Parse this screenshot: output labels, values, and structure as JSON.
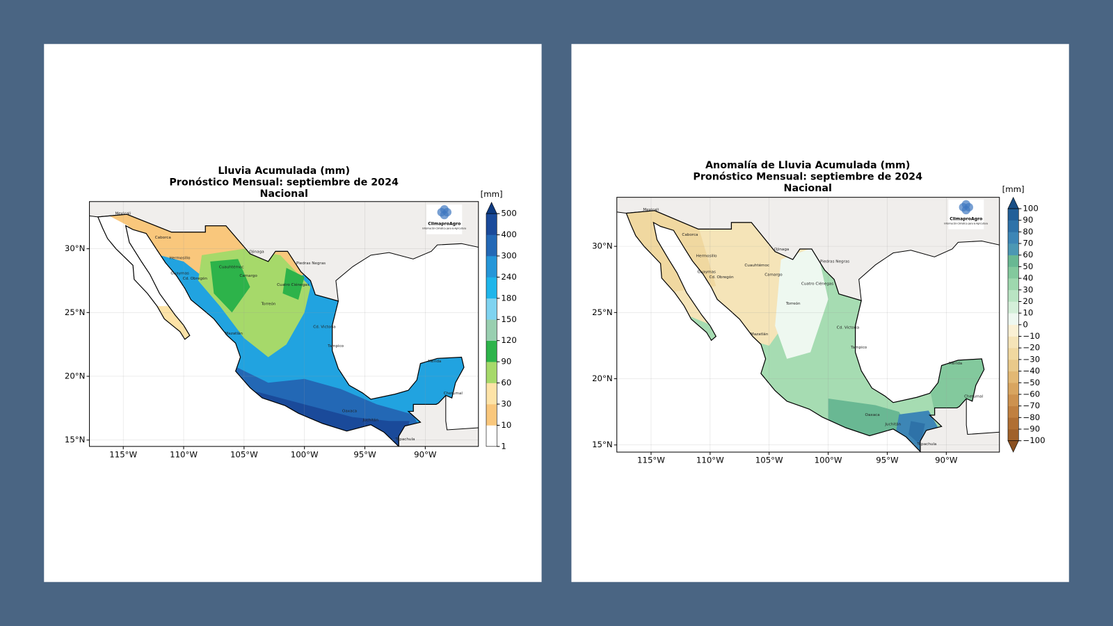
{
  "panels": [
    {
      "title": [
        "Lluvia Acumulada (mm)",
        "Pronóstico Mensual: septiembre de 2024",
        "Nacional"
      ],
      "map": {
        "xlim": [
          -117.8,
          -85.6
        ],
        "ylim": [
          14.5,
          33.7
        ],
        "xticks": [
          {
            "value": -115,
            "label": "115°W"
          },
          {
            "value": -110,
            "label": "110°W"
          },
          {
            "value": -105,
            "label": "105°W"
          },
          {
            "value": -100,
            "label": "100°W"
          },
          {
            "value": -95,
            "label": "95°W"
          },
          {
            "value": -90,
            "label": "90°W"
          }
        ],
        "yticks": [
          {
            "value": 15,
            "label": "15°N"
          },
          {
            "value": 20,
            "label": "20°N"
          },
          {
            "value": 25,
            "label": "25°N"
          },
          {
            "value": 30,
            "label": "30°N"
          }
        ],
        "grid": true,
        "cities": [
          "Mexicali",
          "Caborca",
          "Hermosillo",
          "Guaymas",
          "Cd. Obregón",
          "Cuauhtémoc",
          "Ojinaga",
          "Piedras Negras",
          "Camargo",
          "Cuatro Ciénegas",
          "Torreón",
          "Mazatlán",
          "Cd. Victoria",
          "Tampico",
          "Oaxaca",
          "Mérida",
          "Chetumal",
          "Juchitán",
          "Tapachula"
        ],
        "logo": {
          "name": "ClimaproAgro",
          "tagline": "Información Climática para la Agricultura"
        }
      },
      "colorbar": {
        "unit": "[mm]",
        "ticks": [
          1,
          10,
          30,
          60,
          90,
          120,
          150,
          180,
          240,
          300,
          400,
          500
        ],
        "colors": [
          "#ffffff",
          "#f9c77c",
          "#fde3a7",
          "#a6d96a",
          "#2db34a",
          "#99cfb0",
          "#7fd3f0",
          "#1fb5ea",
          "#2596d8",
          "#2368b5",
          "#1a4a9a"
        ],
        "extend_colors": {
          "max": "#0e3a80"
        }
      }
    },
    {
      "title": [
        "Anomalía de Lluvia Acumulada (mm)",
        "Pronóstico Mensual: septiembre de 2024",
        "Nacional"
      ],
      "map": {
        "xlim": [
          -117.9,
          -85.5
        ],
        "ylim": [
          14.46,
          33.7
        ],
        "xticks": [
          {
            "value": -115,
            "label": "115°W"
          },
          {
            "value": -110,
            "label": "110°W"
          },
          {
            "value": -105,
            "label": "105°W"
          },
          {
            "value": -100,
            "label": "100°W"
          },
          {
            "value": -95,
            "label": "95°W"
          },
          {
            "value": -90,
            "label": "90°W"
          }
        ],
        "yticks": [
          {
            "value": 15,
            "label": "15°N"
          },
          {
            "value": 20,
            "label": "20°N"
          },
          {
            "value": 25,
            "label": "25°N"
          },
          {
            "value": 30,
            "label": "30°N"
          }
        ],
        "grid": true,
        "cities": [
          "Mexicali",
          "Caborca",
          "Hermosillo",
          "Guaymas",
          "Cd. Obregón",
          "Cuauhtémoc",
          "Ojinaga",
          "Piedras Negras",
          "Camargo",
          "Cuatro Ciénegas",
          "Torreón",
          "Mazatlán",
          "Cd. Victoria",
          "Tampico",
          "Oaxaca",
          "Mérida",
          "Chetumal",
          "Juchitán",
          "Tapachula"
        ],
        "logo": {
          "name": "ClimaproAgro",
          "tagline": "Información Climática para la Agricultura"
        }
      },
      "colorbar": {
        "unit": "[mm]",
        "ticks": [
          {
            "value": -100,
            "label": "−100"
          },
          {
            "value": -90,
            "label": "−90"
          },
          {
            "value": -80,
            "label": "−80"
          },
          {
            "value": -70,
            "label": "−70"
          },
          {
            "value": -60,
            "label": "−60"
          },
          {
            "value": -50,
            "label": "−50"
          },
          {
            "value": -40,
            "label": "−40"
          },
          {
            "value": -30,
            "label": "−30"
          },
          {
            "value": -20,
            "label": "−20"
          },
          {
            "value": -10,
            "label": "−10"
          },
          0,
          10,
          20,
          30,
          40,
          50,
          60,
          70,
          80,
          90,
          100
        ],
        "colors": [
          "#a0612a",
          "#b06f33",
          "#c08040",
          "#cd924f",
          "#d8a560",
          "#e2b874",
          "#e9c98a",
          "#f0d8a0",
          "#f5e4b8",
          "#faf0d4",
          "#eef8f0",
          "#d4efd9",
          "#b9e4c3",
          "#9ed8ae",
          "#83c99d",
          "#69b893",
          "#4c98b4",
          "#3d86b6",
          "#2e72a8",
          "#225f98"
        ],
        "extend_colors": {
          "min": "#8a5020",
          "max": "#1a4f85"
        }
      }
    }
  ]
}
